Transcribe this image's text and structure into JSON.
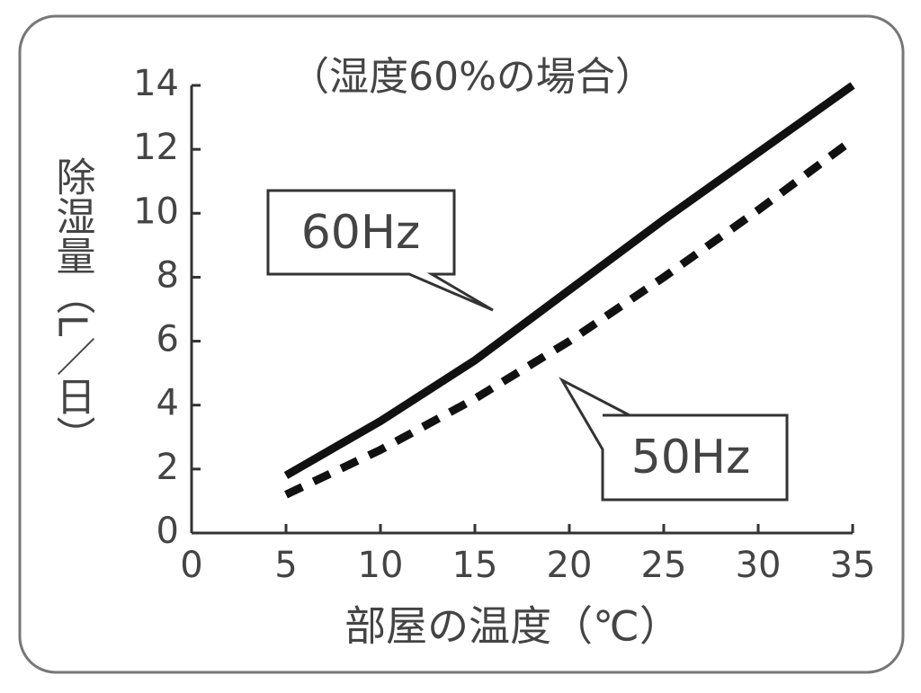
{
  "chart_data": {
    "type": "line",
    "subtitle": "（湿度60%の場合）",
    "y_label": "除湿量（L／日）",
    "x_label": "部屋の温度（℃）",
    "x": [
      5,
      10,
      15,
      20,
      25,
      30,
      35
    ],
    "series": [
      {
        "name": "60Hz",
        "color": "#111111",
        "dash": false,
        "values": [
          1.8,
          3.5,
          5.4,
          7.6,
          9.8,
          11.9,
          14.0
        ]
      },
      {
        "name": "50Hz",
        "color": "#111111",
        "dash": true,
        "values": [
          1.2,
          2.6,
          4.2,
          6.0,
          8.0,
          10.1,
          12.3
        ]
      }
    ],
    "xlim": [
      0,
      35
    ],
    "xticks": [
      0,
      5,
      10,
      15,
      20,
      25,
      30,
      35
    ],
    "ylim": [
      0,
      14
    ],
    "yticks": [
      0,
      2,
      4,
      6,
      8,
      10,
      12,
      14
    ]
  }
}
